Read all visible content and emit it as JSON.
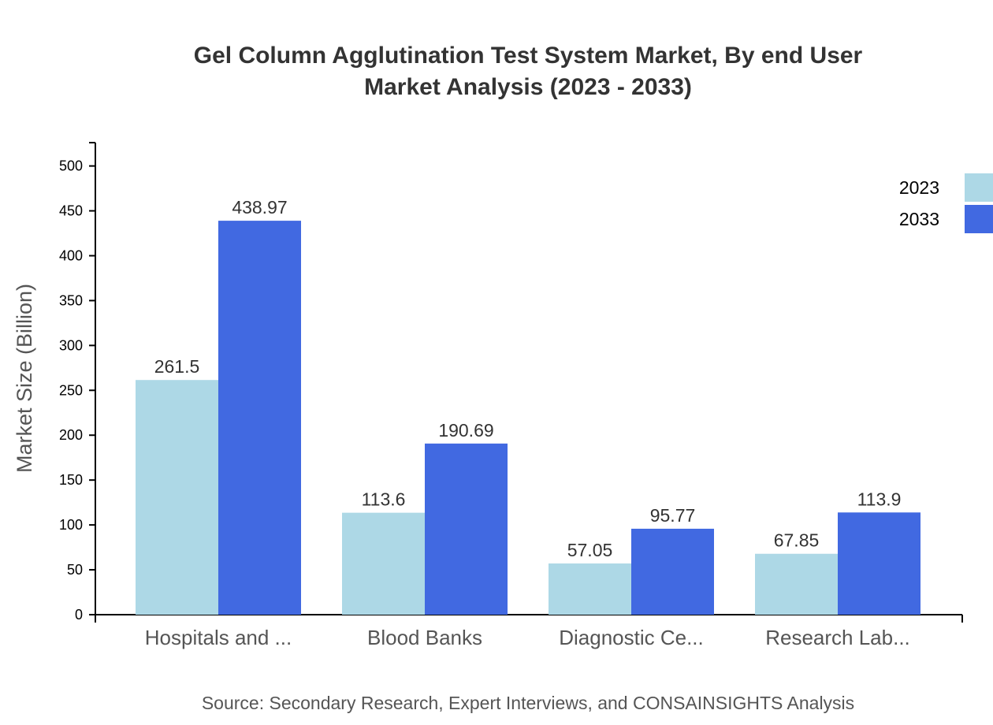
{
  "chart_data": {
    "type": "bar",
    "title_lines": [
      "Gel Column Agglutination Test System Market, By end User",
      "Market Analysis (2023 - 2033)"
    ],
    "xlabel": "",
    "ylabel": "Market Size (Billion)",
    "ylim": [
      0,
      526
    ],
    "yticks": [
      0,
      50,
      100,
      150,
      200,
      250,
      300,
      350,
      400,
      450,
      500
    ],
    "grid": false,
    "legend_position": "top-right",
    "categories": [
      "Hospitals and ...",
      "Blood Banks",
      "Diagnostic Ce...",
      "Research Lab..."
    ],
    "series": [
      {
        "name": "2023",
        "color": "#ADD8E6",
        "values": [
          261.5,
          113.6,
          57.05,
          67.85
        ]
      },
      {
        "name": "2033",
        "color": "#4169E1",
        "values": [
          438.97,
          190.69,
          95.77,
          113.9
        ]
      }
    ]
  },
  "source": "Source: Secondary Research, Expert Interviews, and CONSAINSIGHTS Analysis"
}
